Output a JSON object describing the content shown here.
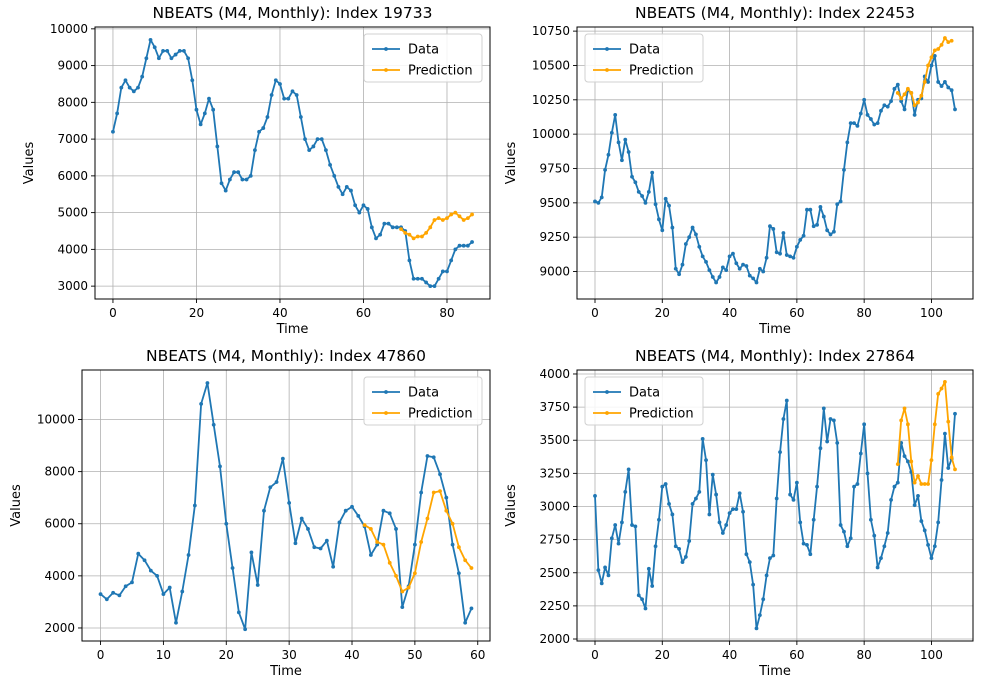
{
  "colors": {
    "data": "#1f77b4",
    "prediction": "#ffa500",
    "grid": "#b0b0b0",
    "frame": "#000000"
  },
  "legend_labels": [
    "Data",
    "Prediction"
  ],
  "chart_data": [
    {
      "type": "line",
      "title": "NBEATS (M4, Monthly): Index 19733",
      "xlabel": "Time",
      "ylabel": "Values",
      "xlim": [
        -4.3,
        90.3
      ],
      "ylim": [
        2650,
        10050
      ],
      "xticks": [
        0,
        20,
        40,
        60,
        80
      ],
      "yticks": [
        3000,
        4000,
        5000,
        6000,
        7000,
        8000,
        9000,
        10000
      ],
      "grid": true,
      "legend_position": "upper right",
      "series": [
        {
          "name": "Data",
          "color": "#1f77b4",
          "x_start": 0,
          "values": [
            7200,
            7700,
            8400,
            8600,
            8400,
            8300,
            8400,
            8700,
            9200,
            9700,
            9500,
            9200,
            9400,
            9400,
            9200,
            9300,
            9400,
            9400,
            9200,
            8600,
            7800,
            7400,
            7700,
            8100,
            7800,
            6800,
            5800,
            5600,
            5900,
            6100,
            6100,
            5900,
            5900,
            6000,
            6700,
            7200,
            7300,
            7600,
            8200,
            8600,
            8500,
            8100,
            8100,
            8300,
            8200,
            7600,
            7000,
            6700,
            6800,
            7000,
            7000,
            6700,
            6300,
            6000,
            5700,
            5500,
            5700,
            5600,
            5200,
            5000,
            5200,
            5100,
            4600,
            4300,
            4400,
            4700,
            4700,
            4600,
            4600,
            4600,
            4500,
            3700,
            3200,
            3200,
            3200,
            3100,
            3000,
            3000,
            3200,
            3400,
            3400,
            3700,
            4000,
            4100,
            4100,
            4100,
            4200
          ]
        },
        {
          "name": "Prediction",
          "color": "#ffa500",
          "x_start": 69,
          "values": [
            4550,
            4450,
            4400,
            4300,
            4350,
            4350,
            4450,
            4600,
            4800,
            4850,
            4800,
            4850,
            4950,
            5000,
            4900,
            4800,
            4850,
            4950
          ]
        }
      ]
    },
    {
      "type": "line",
      "title": "NBEATS (M4, Monthly): Index 22453",
      "xlabel": "Time",
      "ylabel": "Values",
      "xlim": [
        -5.35,
        112.35
      ],
      "ylim": [
        8800,
        10780
      ],
      "xticks": [
        0,
        20,
        40,
        60,
        80,
        100
      ],
      "yticks": [
        9000,
        9250,
        9500,
        9750,
        10000,
        10250,
        10500,
        10750
      ],
      "grid": true,
      "legend_position": "upper left",
      "series": [
        {
          "name": "Data",
          "color": "#1f77b4",
          "x_start": 0,
          "values": [
            9510,
            9500,
            9540,
            9740,
            9850,
            10010,
            10140,
            9940,
            9810,
            9960,
            9870,
            9690,
            9650,
            9580,
            9550,
            9500,
            9580,
            9720,
            9490,
            9380,
            9300,
            9530,
            9480,
            9320,
            9020,
            8980,
            9050,
            9200,
            9250,
            9320,
            9270,
            9180,
            9110,
            9070,
            9010,
            8960,
            8920,
            8960,
            9030,
            9010,
            9110,
            9130,
            9060,
            9020,
            9050,
            9040,
            8970,
            8950,
            8920,
            9020,
            9000,
            9100,
            9330,
            9310,
            9140,
            9130,
            9280,
            9120,
            9110,
            9100,
            9180,
            9230,
            9260,
            9450,
            9450,
            9330,
            9340,
            9470,
            9400,
            9300,
            9270,
            9290,
            9490,
            9510,
            9740,
            9940,
            10080,
            10080,
            10060,
            10150,
            10250,
            10140,
            10110,
            10070,
            10080,
            10170,
            10210,
            10200,
            10240,
            10330,
            10360,
            10240,
            10180,
            10320,
            10300,
            10140,
            10250,
            10260,
            10420,
            10380,
            10500,
            10570,
            10380,
            10350,
            10380,
            10340,
            10320,
            10180
          ]
        },
        {
          "name": "Prediction",
          "color": "#ffa500",
          "x_start": 90,
          "values": [
            10300,
            10260,
            10290,
            10330,
            10300,
            10210,
            10230,
            10280,
            10380,
            10500,
            10560,
            10610,
            10620,
            10650,
            10700,
            10670,
            10680
          ]
        }
      ]
    },
    {
      "type": "line",
      "title": "NBEATS (M4, Monthly): Index 47860",
      "xlabel": "Time",
      "ylabel": "Values",
      "xlim": [
        -2.95,
        61.95
      ],
      "ylim": [
        1500,
        11900
      ],
      "xticks": [
        0,
        10,
        20,
        30,
        40,
        50,
        60
      ],
      "yticks": [
        2000,
        4000,
        6000,
        8000,
        10000
      ],
      "grid": true,
      "legend_position": "upper right",
      "series": [
        {
          "name": "Data",
          "color": "#1f77b4",
          "x_start": 0,
          "values": [
            3300,
            3100,
            3350,
            3250,
            3600,
            3750,
            4850,
            4600,
            4200,
            4000,
            3300,
            3550,
            2200,
            3400,
            4800,
            6700,
            10600,
            11400,
            9800,
            8200,
            6000,
            4300,
            2600,
            1950,
            4900,
            3650,
            6500,
            7400,
            7600,
            8500,
            6800,
            5250,
            6200,
            5800,
            5100,
            5050,
            5350,
            4350,
            6050,
            6500,
            6650,
            6300,
            5900,
            4800,
            5200,
            6500,
            6400,
            5800,
            2800,
            3600,
            5200,
            7200,
            8600,
            8550,
            7900,
            7000,
            5200,
            4100,
            2200,
            2750
          ]
        },
        {
          "name": "Prediction",
          "color": "#ffa500",
          "x_start": 42,
          "values": [
            5950,
            5800,
            5300,
            5200,
            4500,
            4000,
            3400,
            3550,
            4100,
            5300,
            6200,
            7200,
            7250,
            6500,
            6000,
            5100,
            4600,
            4300
          ]
        }
      ]
    },
    {
      "type": "line",
      "title": "NBEATS (M4, Monthly): Index 27864",
      "xlabel": "Time",
      "ylabel": "Values",
      "xlim": [
        -5.35,
        112.35
      ],
      "ylim": [
        1985,
        4030
      ],
      "xticks": [
        0,
        20,
        40,
        60,
        80,
        100
      ],
      "yticks": [
        2000,
        2250,
        2500,
        2750,
        3000,
        3250,
        3500,
        3750,
        4000
      ],
      "grid": true,
      "legend_position": "upper left",
      "series": [
        {
          "name": "Data",
          "color": "#1f77b4",
          "x_start": 0,
          "values": [
            3080,
            2520,
            2420,
            2540,
            2480,
            2760,
            2860,
            2720,
            2880,
            3110,
            3280,
            2860,
            2850,
            2330,
            2300,
            2230,
            2530,
            2400,
            2700,
            2900,
            3150,
            3170,
            3020,
            2940,
            2700,
            2680,
            2580,
            2620,
            2740,
            3020,
            3060,
            3110,
            3510,
            3350,
            2940,
            3240,
            3090,
            2880,
            2800,
            2860,
            2950,
            2980,
            2980,
            3100,
            2960,
            2640,
            2580,
            2410,
            2080,
            2180,
            2300,
            2480,
            2610,
            2630,
            3060,
            3410,
            3660,
            3800,
            3090,
            3050,
            3180,
            2880,
            2720,
            2710,
            2640,
            2900,
            3150,
            3440,
            3740,
            3490,
            3660,
            3650,
            3480,
            2860,
            2810,
            2700,
            2760,
            3150,
            3170,
            3400,
            3620,
            3250,
            2900,
            2780,
            2540,
            2610,
            2700,
            2800,
            3050,
            3150,
            3180,
            3480,
            3380,
            3340,
            3260,
            3010,
            3080,
            2890,
            2820,
            2710,
            2610,
            2700,
            2880,
            3200,
            3550,
            3290,
            3360,
            3700
          ]
        },
        {
          "name": "Prediction",
          "color": "#ffa500",
          "x_start": 90,
          "values": [
            3320,
            3650,
            3740,
            3620,
            3340,
            3180,
            3230,
            3170,
            3170,
            3170,
            3350,
            3620,
            3850,
            3890,
            3940,
            3640,
            3370,
            3280
          ]
        }
      ]
    }
  ]
}
